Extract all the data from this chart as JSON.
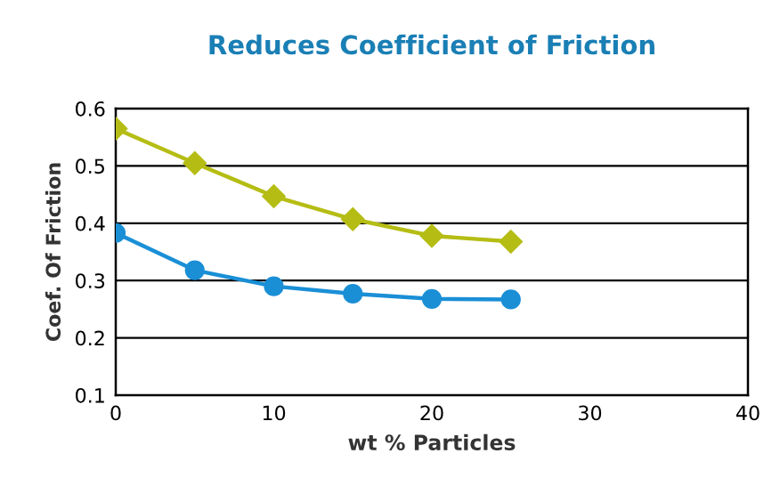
{
  "chart_data": {
    "type": "line",
    "title": "Reduces Coefficient of Friction",
    "xlabel": "wt % Particles",
    "ylabel": "Coef. Of Friction",
    "xlim": [
      0,
      40
    ],
    "xticks": [
      0,
      10,
      20,
      30,
      40
    ],
    "ylim": [
      0.1,
      0.6
    ],
    "yticks": [
      0.1,
      0.2,
      0.3,
      0.4,
      0.5,
      0.6
    ],
    "grid": "y",
    "series": [
      {
        "color": "#b5bd14",
        "marker": "diamond",
        "x": [
          0,
          5,
          10,
          15,
          20,
          25
        ],
        "values": [
          0.565,
          0.505,
          0.447,
          0.407,
          0.378,
          0.368
        ]
      },
      {
        "color": "#1a8fd6",
        "marker": "circle",
        "x": [
          0,
          5,
          10,
          15,
          20,
          25
        ],
        "values": [
          0.383,
          0.318,
          0.29,
          0.277,
          0.268,
          0.267
        ]
      }
    ]
  }
}
